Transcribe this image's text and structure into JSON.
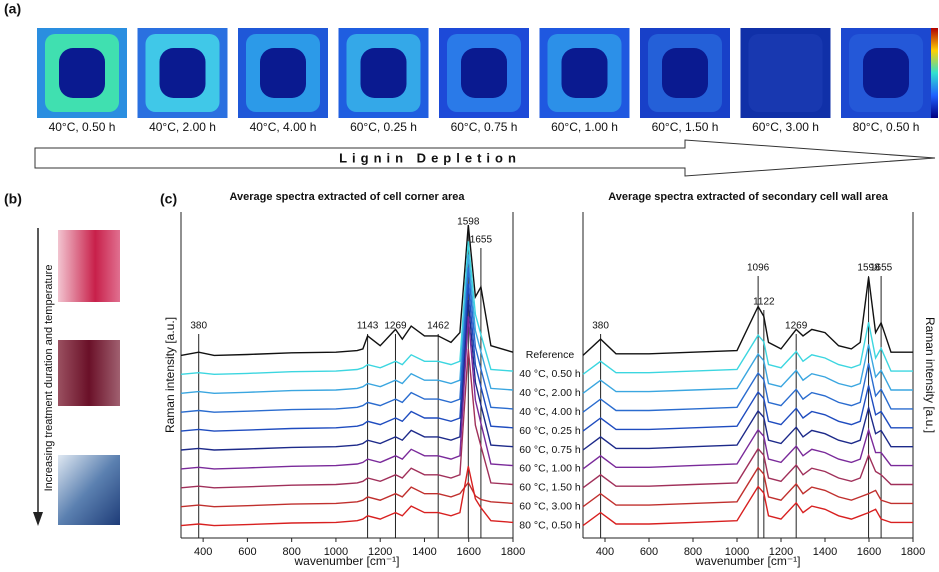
{
  "figure": {
    "panel_labels": [
      "(a)",
      "(b)",
      "(c)"
    ],
    "panel_a": {
      "captions": [
        {
          "text": "40°C, 0.50 h",
          "color": "#3cc6d4"
        },
        {
          "text": "40°C, 2.00 h",
          "color": "#3aa6d8"
        },
        {
          "text": "40°C, 4.00 h",
          "color": "#2a6ccf"
        },
        {
          "text": "60°C, 0.25 h",
          "color": "#1f4cbf"
        },
        {
          "text": "60°C, 0.75 h",
          "color": "#1d2a8a"
        },
        {
          "text": "60°C, 1.00 h",
          "color": "#7a2a9a"
        },
        {
          "text": "60°C, 1.50 h",
          "color": "#a0305a"
        },
        {
          "text": "60°C, 3.00 h",
          "color": "#c0302e"
        },
        {
          "text": "80°C, 0.50 h",
          "color": "#d82020"
        }
      ],
      "arrow_label": "Lignin Depletion"
    },
    "panel_b": {
      "arrow_label": "Increasing treatment duration and temperature"
    }
  },
  "chart_data": [
    {
      "type": "line",
      "title": "Average spectra extracted of cell corner area",
      "x_label": "wavenumber [cm⁻¹]",
      "y_label": "Raman intensity [a.u.]",
      "x": [
        300,
        380,
        450,
        600,
        800,
        1000,
        1096,
        1122,
        1143,
        1200,
        1269,
        1300,
        1340,
        1400,
        1462,
        1520,
        1560,
        1598,
        1630,
        1655,
        1700,
        1800
      ],
      "xlim": [
        300,
        1800
      ],
      "xticks": [
        400,
        600,
        800,
        1000,
        1200,
        1400,
        1600,
        1800
      ],
      "ylim": [
        0,
        100
      ],
      "peaks": [
        380,
        1143,
        1269,
        1462,
        1598,
        1655
      ],
      "series": [
        {
          "name": "Reference",
          "color": "#111111",
          "values": [
            56,
            57,
            56,
            56.3,
            56.8,
            57,
            57.5,
            58,
            62,
            59,
            64,
            61,
            65,
            62,
            62,
            60,
            63,
            96,
            74,
            77,
            59,
            57
          ]
        },
        {
          "name": "40 °C, 0.50 h",
          "color": "#3cd6e0",
          "values": [
            50.2,
            50.7,
            50.2,
            50.5,
            51,
            51.2,
            51.7,
            52.2,
            53.2,
            52.2,
            54.2,
            53.2,
            56.2,
            54.2,
            54.2,
            53.2,
            54.2,
            91,
            68.6,
            62.4,
            51.7,
            51.2
          ]
        },
        {
          "name": "40 °C, 2.00 h",
          "color": "#3aa6e0",
          "values": [
            44.4,
            44.9,
            44.4,
            44.7,
            45.2,
            45.4,
            45.9,
            46.4,
            47.4,
            46.4,
            48.4,
            47.4,
            50.4,
            48.4,
            48.4,
            47.4,
            48.4,
            87,
            63.6,
            57.2,
            45.9,
            45.4
          ]
        },
        {
          "name": "40 °C, 4.00 h",
          "color": "#2a6ccf",
          "values": [
            38.6,
            39.1,
            38.6,
            38.9,
            39.4,
            39.6,
            40.1,
            40.6,
            41.6,
            40.6,
            42.6,
            41.6,
            44.6,
            42.6,
            42.6,
            41.6,
            42.6,
            83,
            58.6,
            51.9,
            40.1,
            39.6
          ]
        },
        {
          "name": "60 °C, 0.25 h",
          "color": "#1f4cbf",
          "values": [
            32.8,
            33.3,
            32.8,
            33.1,
            33.6,
            33.8,
            34.3,
            34.8,
            35.8,
            34.8,
            36.8,
            35.8,
            38.8,
            36.8,
            36.8,
            35.8,
            36.8,
            78,
            53.1,
            46.4,
            34.3,
            33.8
          ]
        },
        {
          "name": "60 °C, 0.75 h",
          "color": "#1d2a8a",
          "values": [
            27,
            27.5,
            27,
            27.3,
            27.8,
            28,
            28.5,
            29,
            30,
            29,
            31,
            30,
            33,
            31,
            31,
            30,
            31,
            73,
            47.7,
            40.8,
            28.5,
            28
          ]
        },
        {
          "name": "60 °C, 1.00 h",
          "color": "#7a2a9a",
          "values": [
            21.2,
            21.7,
            21.2,
            21.5,
            22,
            22.2,
            22.7,
            23.2,
            24.2,
            23.2,
            25.2,
            24.2,
            27.2,
            25.2,
            25.2,
            24.2,
            25.2,
            68,
            42.3,
            35.2,
            22.7,
            22.2
          ]
        },
        {
          "name": "60 °C, 1.50 h",
          "color": "#a0305a",
          "values": [
            15.4,
            15.9,
            15.4,
            15.7,
            16.2,
            16.4,
            16.9,
            17.4,
            18.4,
            17.4,
            19.4,
            18.4,
            21.4,
            19.4,
            19.4,
            18.4,
            19.4,
            58,
            34.6,
            28.2,
            16.9,
            16.4
          ]
        },
        {
          "name": "60 °C, 3.00 h",
          "color": "#c0302e",
          "values": [
            9.6,
            10.1,
            9.6,
            9.9,
            10.4,
            10.6,
            11.1,
            11.6,
            12.6,
            11.6,
            13.6,
            12.6,
            15.6,
            13.6,
            13.6,
            12.6,
            13.6,
            17,
            12.9,
            11.8,
            11.1,
            10.6
          ]
        },
        {
          "name": "80 °C, 0.50 h",
          "color": "#d82020",
          "values": [
            3.8,
            4.3,
            3.8,
            4.1,
            4.6,
            4.8,
            5.3,
            5.8,
            6.8,
            5.8,
            7.8,
            6.8,
            9.8,
            7.8,
            7.8,
            6.8,
            7.8,
            22,
            12,
            9.3,
            5.3,
            4.8
          ]
        }
      ]
    },
    {
      "type": "line",
      "title": "Average spectra extracted of secondary cell wall area",
      "x_label": "wavenumber [cm⁻¹]",
      "y_label": "Raman intensity [a.u.]",
      "x": [
        300,
        380,
        450,
        600,
        800,
        1000,
        1096,
        1122,
        1143,
        1200,
        1269,
        1300,
        1340,
        1400,
        1462,
        1520,
        1560,
        1598,
        1630,
        1655,
        1700,
        1800
      ],
      "xlim": [
        300,
        1800
      ],
      "xticks": [
        400,
        600,
        800,
        1000,
        1200,
        1400,
        1600,
        1800
      ],
      "ylim": [
        0,
        100
      ],
      "peaks": [
        380,
        1096,
        1122,
        1269,
        1598,
        1655
      ],
      "series": [
        {
          "color": "#111111",
          "values": [
            56,
            61,
            56.5,
            56.5,
            57,
            57.5,
            71,
            68,
            60,
            58,
            64,
            62,
            64,
            63,
            59,
            58,
            60,
            80,
            63,
            66,
            57,
            57
          ]
        },
        {
          "color": "#3cd6e0",
          "values": [
            50.2,
            54.2,
            50.7,
            50.7,
            51.2,
            51.7,
            62.2,
            60.2,
            53.2,
            52.2,
            57.2,
            54.2,
            56.2,
            55.2,
            53.2,
            52.2,
            53.2,
            66.2,
            55.2,
            58.2,
            51.2,
            51.2
          ]
        },
        {
          "color": "#3aa6e0",
          "values": [
            44.4,
            48.4,
            44.9,
            44.9,
            45.4,
            45.9,
            56.4,
            54.4,
            47.4,
            46.4,
            51.4,
            48.4,
            50.4,
            49.4,
            47.4,
            46.4,
            47.4,
            59.4,
            49.4,
            51.4,
            45.4,
            45.4
          ]
        },
        {
          "color": "#2a6ccf",
          "values": [
            38.6,
            42.6,
            39.1,
            39.1,
            39.6,
            40.1,
            50.6,
            48.6,
            41.6,
            40.6,
            45.6,
            42.6,
            44.6,
            43.6,
            41.6,
            40.6,
            41.6,
            53.6,
            43.6,
            45.6,
            39.6,
            39.6
          ]
        },
        {
          "color": "#1f4cbf",
          "values": [
            32.8,
            36.8,
            33.3,
            33.3,
            33.8,
            34.3,
            44.8,
            42.8,
            35.8,
            34.8,
            39.8,
            36.8,
            38.8,
            37.8,
            35.8,
            34.8,
            35.8,
            46.8,
            37.8,
            38.8,
            33.8,
            33.8
          ]
        },
        {
          "color": "#1d2a8a",
          "values": [
            27,
            31,
            27.5,
            27.5,
            28,
            28.5,
            39,
            37,
            30,
            29,
            34,
            31,
            33,
            32,
            30,
            29,
            30,
            40,
            32,
            33,
            28,
            28
          ]
        },
        {
          "color": "#7a2a9a",
          "values": [
            21.2,
            25.2,
            21.7,
            21.7,
            22.2,
            22.7,
            33.2,
            31.2,
            24.2,
            23.2,
            28.2,
            25.2,
            27.2,
            26.2,
            24.2,
            23.2,
            24.2,
            33.2,
            26.2,
            26.2,
            22.2,
            22.2
          ]
        },
        {
          "color": "#a0305a",
          "values": [
            15.4,
            19.4,
            15.9,
            15.9,
            16.4,
            16.9,
            27.4,
            25.4,
            18.4,
            17.4,
            22.4,
            19.4,
            21.4,
            20.4,
            18.4,
            17.4,
            18.4,
            25.4,
            20.4,
            19.4,
            16.4,
            16.4
          ]
        },
        {
          "color": "#c0302e",
          "values": [
            9.6,
            13.6,
            10.1,
            10.1,
            10.6,
            11.1,
            21.6,
            19.6,
            12.6,
            11.6,
            16.6,
            13.6,
            15.6,
            14.6,
            12.6,
            11.6,
            12.6,
            13.6,
            14.6,
            11.6,
            10.6,
            10.6
          ]
        },
        {
          "color": "#d82020",
          "values": [
            3.8,
            7.8,
            4.3,
            4.3,
            4.8,
            5.3,
            15.8,
            13.8,
            6.8,
            5.8,
            10.8,
            7.8,
            9.8,
            8.8,
            6.8,
            5.8,
            6.8,
            7.8,
            8.8,
            5.8,
            4.8,
            4.8
          ]
        }
      ]
    }
  ]
}
